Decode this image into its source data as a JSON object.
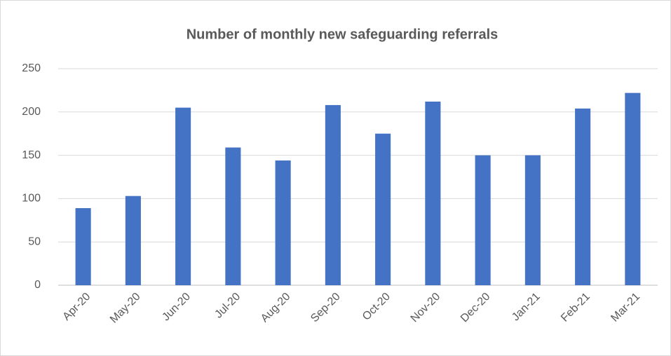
{
  "chart_data": {
    "type": "bar",
    "title": "Number of monthly new safeguarding referrals",
    "categories": [
      "Apr-20",
      "May-20",
      "Jun-20",
      "Jul-20",
      "Aug-20",
      "Sep-20",
      "Oct-20",
      "Nov-20",
      "Dec-20",
      "Jan-21",
      "Feb-21",
      "Mar-21"
    ],
    "values": [
      89,
      103,
      205,
      159,
      144,
      208,
      175,
      212,
      150,
      150,
      204,
      222
    ],
    "color": "#4472c4",
    "ylim": [
      0,
      250
    ],
    "yticks": [
      0,
      50,
      100,
      150,
      200,
      250
    ],
    "grid": true
  }
}
